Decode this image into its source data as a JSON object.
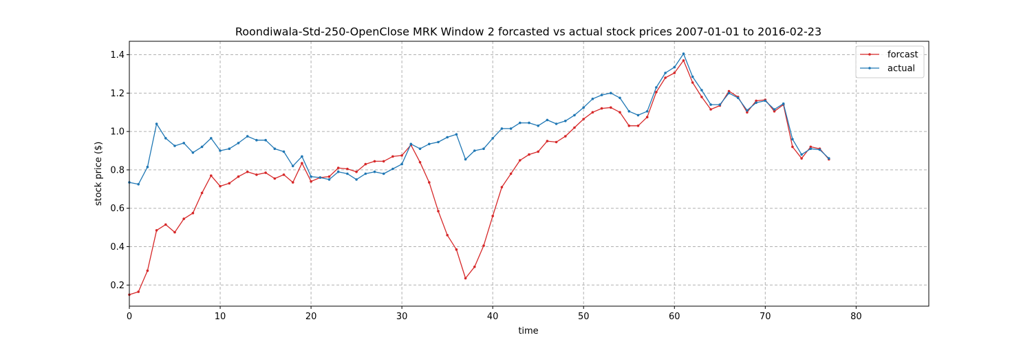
{
  "chart_data": {
    "type": "line",
    "title": "Roondiwala-Std-250-OpenClose MRK Window 2 forcasted vs actual stock prices 2007-01-01 to 2016-02-23",
    "xlabel": "time",
    "ylabel": "stock price ($)",
    "xlim": [
      0,
      88
    ],
    "ylim": [
      0.09,
      1.47
    ],
    "xticks": [
      0,
      10,
      20,
      30,
      40,
      50,
      60,
      70,
      80
    ],
    "yticks": [
      0.2,
      0.4,
      0.6,
      0.8,
      1.0,
      1.2,
      1.4
    ],
    "grid": true,
    "legend_position": "top-right",
    "series": [
      {
        "name": "forcast",
        "color": "#d62728",
        "x": [
          0,
          1,
          2,
          3,
          4,
          5,
          6,
          7,
          8,
          9,
          10,
          11,
          12,
          13,
          14,
          15,
          16,
          17,
          18,
          19,
          20,
          21,
          22,
          23,
          24,
          25,
          26,
          27,
          28,
          29,
          30,
          31,
          32,
          33,
          34,
          35,
          36,
          37,
          38,
          39,
          40,
          41,
          42,
          43,
          44,
          45,
          46,
          47,
          48,
          49,
          50,
          51,
          52,
          53,
          54,
          55,
          56,
          57,
          58,
          59,
          60,
          61,
          62,
          63,
          64,
          65,
          66,
          67,
          68,
          69,
          70,
          71,
          72,
          73,
          74,
          75,
          76,
          77
        ],
        "values": [
          0.15,
          0.165,
          0.275,
          0.485,
          0.515,
          0.475,
          0.545,
          0.575,
          0.68,
          0.77,
          0.715,
          0.73,
          0.765,
          0.79,
          0.775,
          0.785,
          0.755,
          0.775,
          0.735,
          0.835,
          0.74,
          0.76,
          0.765,
          0.81,
          0.805,
          0.79,
          0.83,
          0.845,
          0.845,
          0.87,
          0.875,
          0.93,
          0.84,
          0.735,
          0.585,
          0.46,
          0.385,
          0.235,
          0.295,
          0.405,
          0.56,
          0.71,
          0.78,
          0.85,
          0.88,
          0.895,
          0.95,
          0.945,
          0.975,
          1.02,
          1.065,
          1.1,
          1.12,
          1.125,
          1.1,
          1.03,
          1.03,
          1.075,
          1.205,
          1.28,
          1.305,
          1.37,
          1.255,
          1.18,
          1.115,
          1.135,
          1.21,
          1.18,
          1.1,
          1.16,
          1.165,
          1.105,
          1.14,
          0.92,
          0.86,
          0.92,
          0.91,
          0.855
        ]
      },
      {
        "name": "actual",
        "color": "#1f77b4",
        "x": [
          0,
          1,
          2,
          3,
          4,
          5,
          6,
          7,
          8,
          9,
          10,
          11,
          12,
          13,
          14,
          15,
          16,
          17,
          18,
          19,
          20,
          21,
          22,
          23,
          24,
          25,
          26,
          27,
          28,
          29,
          30,
          31,
          32,
          33,
          34,
          35,
          36,
          37,
          38,
          39,
          40,
          41,
          42,
          43,
          44,
          45,
          46,
          47,
          48,
          49,
          50,
          51,
          52,
          53,
          54,
          55,
          56,
          57,
          58,
          59,
          60,
          61,
          62,
          63,
          64,
          65,
          66,
          67,
          68,
          69,
          70,
          71,
          72,
          73,
          74,
          75,
          76,
          77
        ],
        "values": [
          0.735,
          0.725,
          0.815,
          1.04,
          0.965,
          0.925,
          0.94,
          0.89,
          0.92,
          0.965,
          0.9,
          0.91,
          0.94,
          0.975,
          0.955,
          0.955,
          0.91,
          0.895,
          0.82,
          0.87,
          0.765,
          0.76,
          0.75,
          0.79,
          0.78,
          0.75,
          0.78,
          0.79,
          0.78,
          0.805,
          0.83,
          0.935,
          0.91,
          0.935,
          0.945,
          0.97,
          0.985,
          0.855,
          0.9,
          0.91,
          0.965,
          1.015,
          1.015,
          1.045,
          1.045,
          1.03,
          1.06,
          1.04,
          1.055,
          1.085,
          1.125,
          1.17,
          1.19,
          1.2,
          1.175,
          1.105,
          1.085,
          1.105,
          1.23,
          1.305,
          1.335,
          1.405,
          1.285,
          1.215,
          1.14,
          1.14,
          1.2,
          1.175,
          1.11,
          1.15,
          1.16,
          1.115,
          1.145,
          0.96,
          0.88,
          0.91,
          0.905,
          0.86
        ]
      }
    ]
  }
}
